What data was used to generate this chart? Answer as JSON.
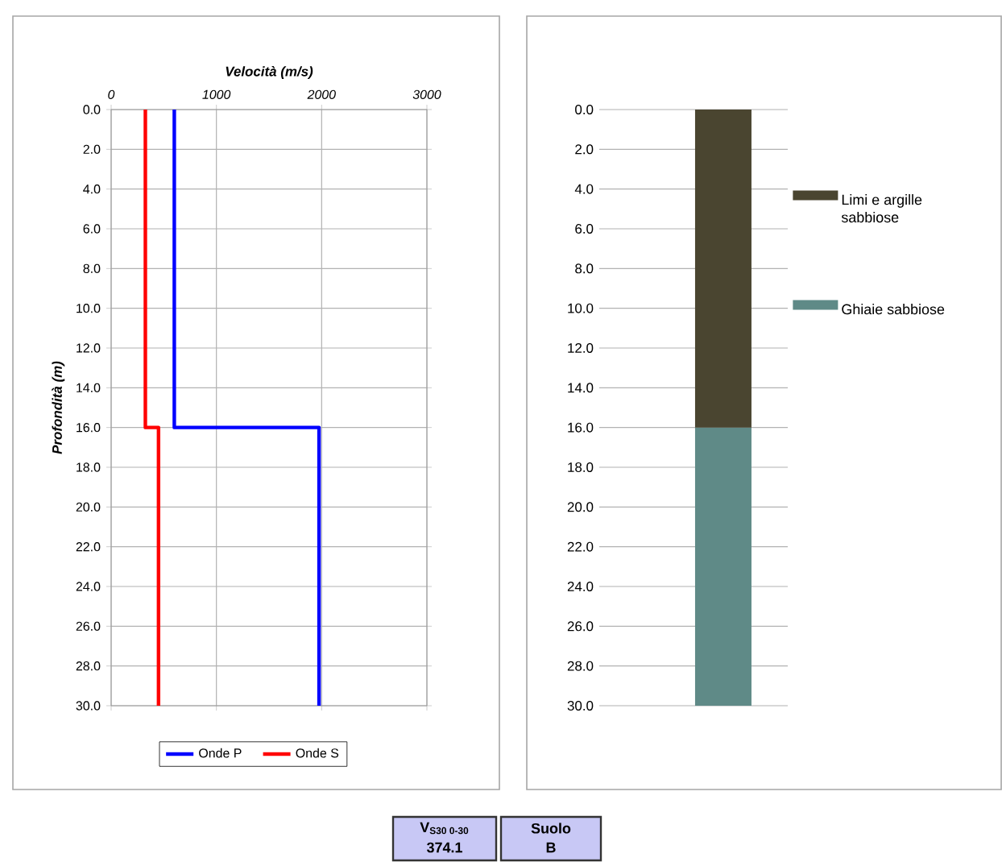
{
  "chart_data": [
    {
      "type": "line",
      "xlabel": "Velocità (m/s)",
      "ylabel": "Profondità (m)",
      "series": [
        {
          "name": "Onde P",
          "color": "#0000ff",
          "x": [
            600,
            600,
            1975,
            1975
          ],
          "values": [
            0,
            16,
            16,
            30
          ]
        },
        {
          "name": "Onde S",
          "color": "#ff0000",
          "x": [
            325,
            325,
            450,
            450
          ],
          "values": [
            0,
            16,
            16,
            30
          ]
        }
      ],
      "xlim": [
        0,
        3000
      ],
      "xticks": [
        0,
        1000,
        2000,
        3000
      ],
      "ylim": [
        30,
        0
      ],
      "yticks": [
        {
          "value": 0,
          "label": "0.0"
        },
        {
          "value": 2,
          "label": "2.0"
        },
        {
          "value": 4,
          "label": "4.0"
        },
        {
          "value": 6,
          "label": "6.0"
        },
        {
          "value": 8,
          "label": "8.0"
        },
        {
          "value": 10,
          "label": "10.0"
        },
        {
          "value": 12,
          "label": "12.0"
        },
        {
          "value": 14,
          "label": "14.0"
        },
        {
          "value": 16,
          "label": "16.0"
        },
        {
          "value": 18,
          "label": "18.0"
        },
        {
          "value": 20,
          "label": "20.0"
        },
        {
          "value": 22,
          "label": "22.0"
        },
        {
          "value": 24,
          "label": "24.0"
        },
        {
          "value": 26,
          "label": "26.0"
        },
        {
          "value": 28,
          "label": "28.0"
        },
        {
          "value": 30,
          "label": "30.0"
        }
      ],
      "grid": true,
      "legend": "bottom",
      "marker": "none"
    },
    {
      "type": "bar",
      "stacked": true,
      "categories": [
        null
      ],
      "series": [
        {
          "name": "Limi e argille sabbiose",
          "color": "#4a4530",
          "values": [
            16
          ]
        },
        {
          "name": "Ghiaie sabbiose",
          "color": "#5f8a87",
          "values": [
            14
          ]
        }
      ],
      "ylim": [
        30,
        0
      ],
      "yticks": [
        {
          "value": 0,
          "label": "0.0"
        },
        {
          "value": 2,
          "label": "2.0"
        },
        {
          "value": 4,
          "label": "4.0"
        },
        {
          "value": 6,
          "label": "6.0"
        },
        {
          "value": 8,
          "label": "8.0"
        },
        {
          "value": 10,
          "label": "10.0"
        },
        {
          "value": 12,
          "label": "12.0"
        },
        {
          "value": 14,
          "label": "14.0"
        },
        {
          "value": 16,
          "label": "16.0"
        },
        {
          "value": 18,
          "label": "18.0"
        },
        {
          "value": 20,
          "label": "20.0"
        },
        {
          "value": 22,
          "label": "22.0"
        },
        {
          "value": 24,
          "label": "24.0"
        },
        {
          "value": 26,
          "label": "26.0"
        },
        {
          "value": 28,
          "label": "28.0"
        },
        {
          "value": 30,
          "label": "30.0"
        }
      ],
      "grid": "y",
      "legend": "right"
    },
    {
      "type": "other",
      "annotations": [
        "V$_{S30 0-30}$",
        "374.1",
        "Suolo",
        "B"
      ]
    }
  ]
}
